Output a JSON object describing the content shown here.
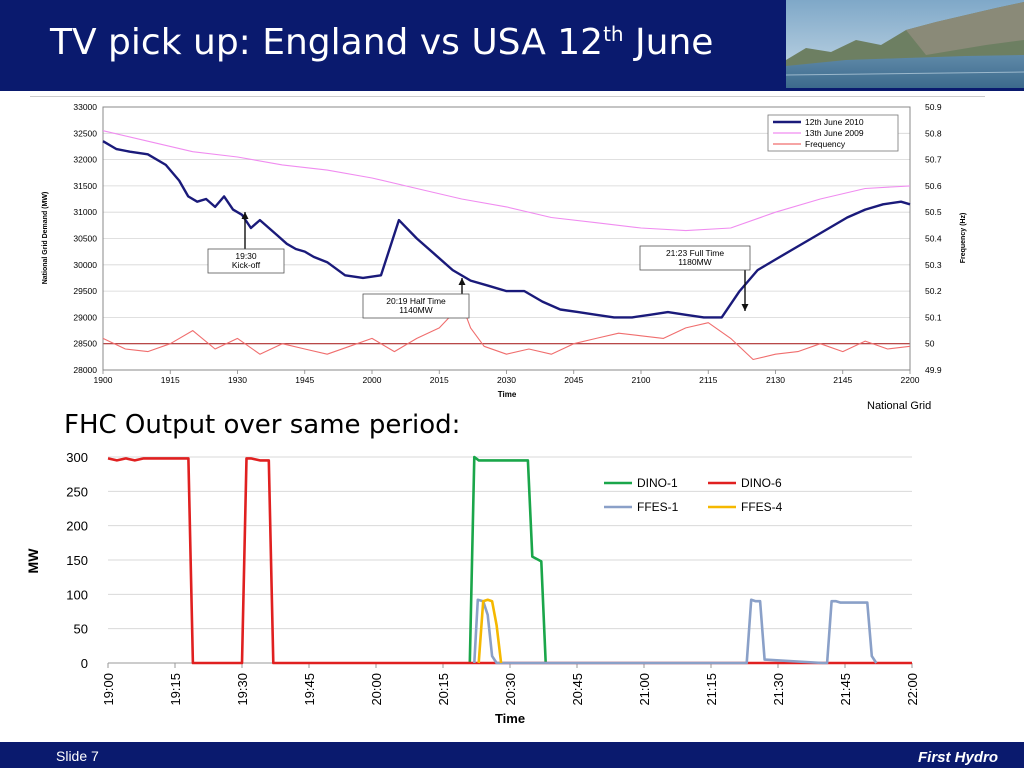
{
  "header": {
    "title_main": "TV pick up: England vs USA 12",
    "title_sup": "th",
    "title_end": " June"
  },
  "subtitle": "FHC Output over same period:",
  "credit": "National Grid",
  "footer": {
    "slide_label": "Slide 7",
    "brand": "First Hydro"
  },
  "colors": {
    "header_bg": "#0a1a6e",
    "series_2010": "#1a1a7a",
    "series_2009": "#f08cf0",
    "series_freq": "#f06e6e",
    "dino1": "#1aa64a",
    "dino6": "#e02020",
    "ffes1": "#8aa0c8",
    "ffes4": "#f5b800"
  },
  "chart_data": [
    {
      "type": "line",
      "xlabel": "Time",
      "ylabel": "National Grid Demand (MW)",
      "y2label": "Frequency (Hz)",
      "ylim": [
        28000,
        33000
      ],
      "y2lim": [
        49.9,
        50.9
      ],
      "x_ticks": [
        "1900",
        "1915",
        "1930",
        "1945",
        "2000",
        "2015",
        "2030",
        "2045",
        "2100",
        "2115",
        "2130",
        "2145",
        "2200"
      ],
      "y_ticks": [
        "28000",
        "28500",
        "29000",
        "29500",
        "30000",
        "30500",
        "31000",
        "31500",
        "32000",
        "32500",
        "33000"
      ],
      "y2_ticks": [
        "49.9",
        "50",
        "50.1",
        "50.2",
        "50.3",
        "50.4",
        "50.5",
        "50.6",
        "50.7",
        "50.8",
        "50.9"
      ],
      "legend_position": "top-right",
      "series": [
        {
          "name": "12th June 2010",
          "axis": "left",
          "x_minutes": [
            0,
            3,
            6,
            10,
            14,
            17,
            19,
            21,
            23,
            25,
            27,
            29,
            31,
            33,
            35,
            37,
            39,
            41,
            43,
            45,
            47,
            50,
            54,
            58,
            62,
            66,
            70,
            74,
            78,
            82,
            86,
            90,
            94,
            98,
            102,
            106,
            110,
            114,
            118,
            122,
            126,
            130,
            134,
            138,
            142,
            146,
            150,
            154,
            158,
            162,
            166,
            170,
            174,
            178,
            180
          ],
          "values": [
            32350,
            32200,
            32150,
            32100,
            31900,
            31600,
            31300,
            31200,
            31250,
            31100,
            31300,
            31050,
            30950,
            30700,
            30850,
            30700,
            30550,
            30400,
            30300,
            30250,
            30150,
            30050,
            29800,
            29750,
            29800,
            30850,
            30500,
            30200,
            29900,
            29700,
            29600,
            29500,
            29500,
            29300,
            29150,
            29100,
            29050,
            29000,
            29000,
            29050,
            29100,
            29050,
            29000,
            29000,
            29500,
            29900,
            30100,
            30300,
            30500,
            30700,
            30900,
            31050,
            31150,
            31200,
            31150
          ]
        },
        {
          "name": "13th June 2009",
          "axis": "left",
          "x_minutes": [
            0,
            10,
            20,
            30,
            40,
            50,
            60,
            70,
            80,
            90,
            100,
            110,
            120,
            130,
            140,
            150,
            160,
            170,
            180
          ],
          "values": [
            32550,
            32350,
            32150,
            32050,
            31900,
            31800,
            31650,
            31450,
            31250,
            31100,
            30900,
            30800,
            30700,
            30650,
            30700,
            31000,
            31250,
            31450,
            31500
          ]
        },
        {
          "name": "Frequency",
          "axis": "right",
          "x_minutes": [
            0,
            5,
            10,
            15,
            20,
            25,
            30,
            35,
            40,
            45,
            50,
            55,
            60,
            65,
            70,
            75,
            80,
            82,
            85,
            90,
            95,
            100,
            105,
            110,
            115,
            120,
            125,
            130,
            135,
            140,
            145,
            150,
            155,
            160,
            165,
            170,
            175,
            180
          ],
          "values": [
            50.02,
            49.98,
            49.97,
            50.0,
            50.05,
            49.98,
            50.02,
            49.96,
            50.0,
            49.98,
            49.96,
            49.99,
            50.02,
            49.97,
            50.02,
            50.06,
            50.15,
            50.06,
            49.99,
            49.96,
            49.98,
            49.96,
            50.0,
            50.02,
            50.04,
            50.03,
            50.02,
            50.06,
            50.08,
            50.02,
            49.94,
            49.96,
            49.97,
            50.0,
            49.97,
            50.01,
            49.98,
            49.99
          ]
        }
      ],
      "annotations": [
        {
          "text": "19:30\nKick-off",
          "target_minute": 30,
          "target_value": 31000
        },
        {
          "text": "20:19 Half Time\n1140MW",
          "target_minute": 79,
          "target_value": 29800
        },
        {
          "text": "21:23 Full Time\n1180MW",
          "target_minute": 143,
          "target_value": 29000
        }
      ]
    },
    {
      "type": "line",
      "xlabel": "Time",
      "ylabel": "MW",
      "ylim": [
        0,
        300
      ],
      "y_ticks": [
        "0",
        "50",
        "100",
        "150",
        "200",
        "250",
        "300"
      ],
      "x_ticks": [
        "19:00",
        "19:15",
        "19:30",
        "19:45",
        "20:00",
        "20:15",
        "20:30",
        "20:45",
        "21:00",
        "21:15",
        "21:30",
        "21:45",
        "22:00"
      ],
      "legend_position": "top-right",
      "series": [
        {
          "name": "DINO-1",
          "x_minutes": [
            81,
            82,
            83,
            90,
            94,
            95,
            97,
            98
          ],
          "values": [
            0,
            300,
            295,
            295,
            295,
            155,
            148,
            0
          ]
        },
        {
          "name": "DINO-6",
          "x_minutes": [
            0,
            2,
            4,
            6,
            8,
            12,
            16,
            18,
            19,
            30,
            31,
            32,
            34,
            36,
            37,
            178,
            180
          ],
          "values": [
            298,
            295,
            298,
            295,
            298,
            298,
            298,
            298,
            0,
            0,
            298,
            298,
            295,
            295,
            0,
            0,
            0
          ]
        },
        {
          "name": "FFES-1",
          "x_minutes": [
            82,
            82.8,
            84,
            85,
            86,
            87,
            143,
            144,
            145,
            146,
            147,
            160,
            161,
            162,
            163,
            164,
            165,
            170,
            171,
            172
          ],
          "values": [
            0,
            92,
            90,
            70,
            10,
            0,
            0,
            92,
            90,
            90,
            5,
            0,
            0,
            90,
            90,
            88,
            88,
            88,
            10,
            0
          ]
        },
        {
          "name": "FFES-4",
          "x_minutes": [
            83,
            84,
            85,
            86,
            87,
            88
          ],
          "values": [
            0,
            90,
            92,
            90,
            55,
            0
          ]
        }
      ]
    }
  ]
}
